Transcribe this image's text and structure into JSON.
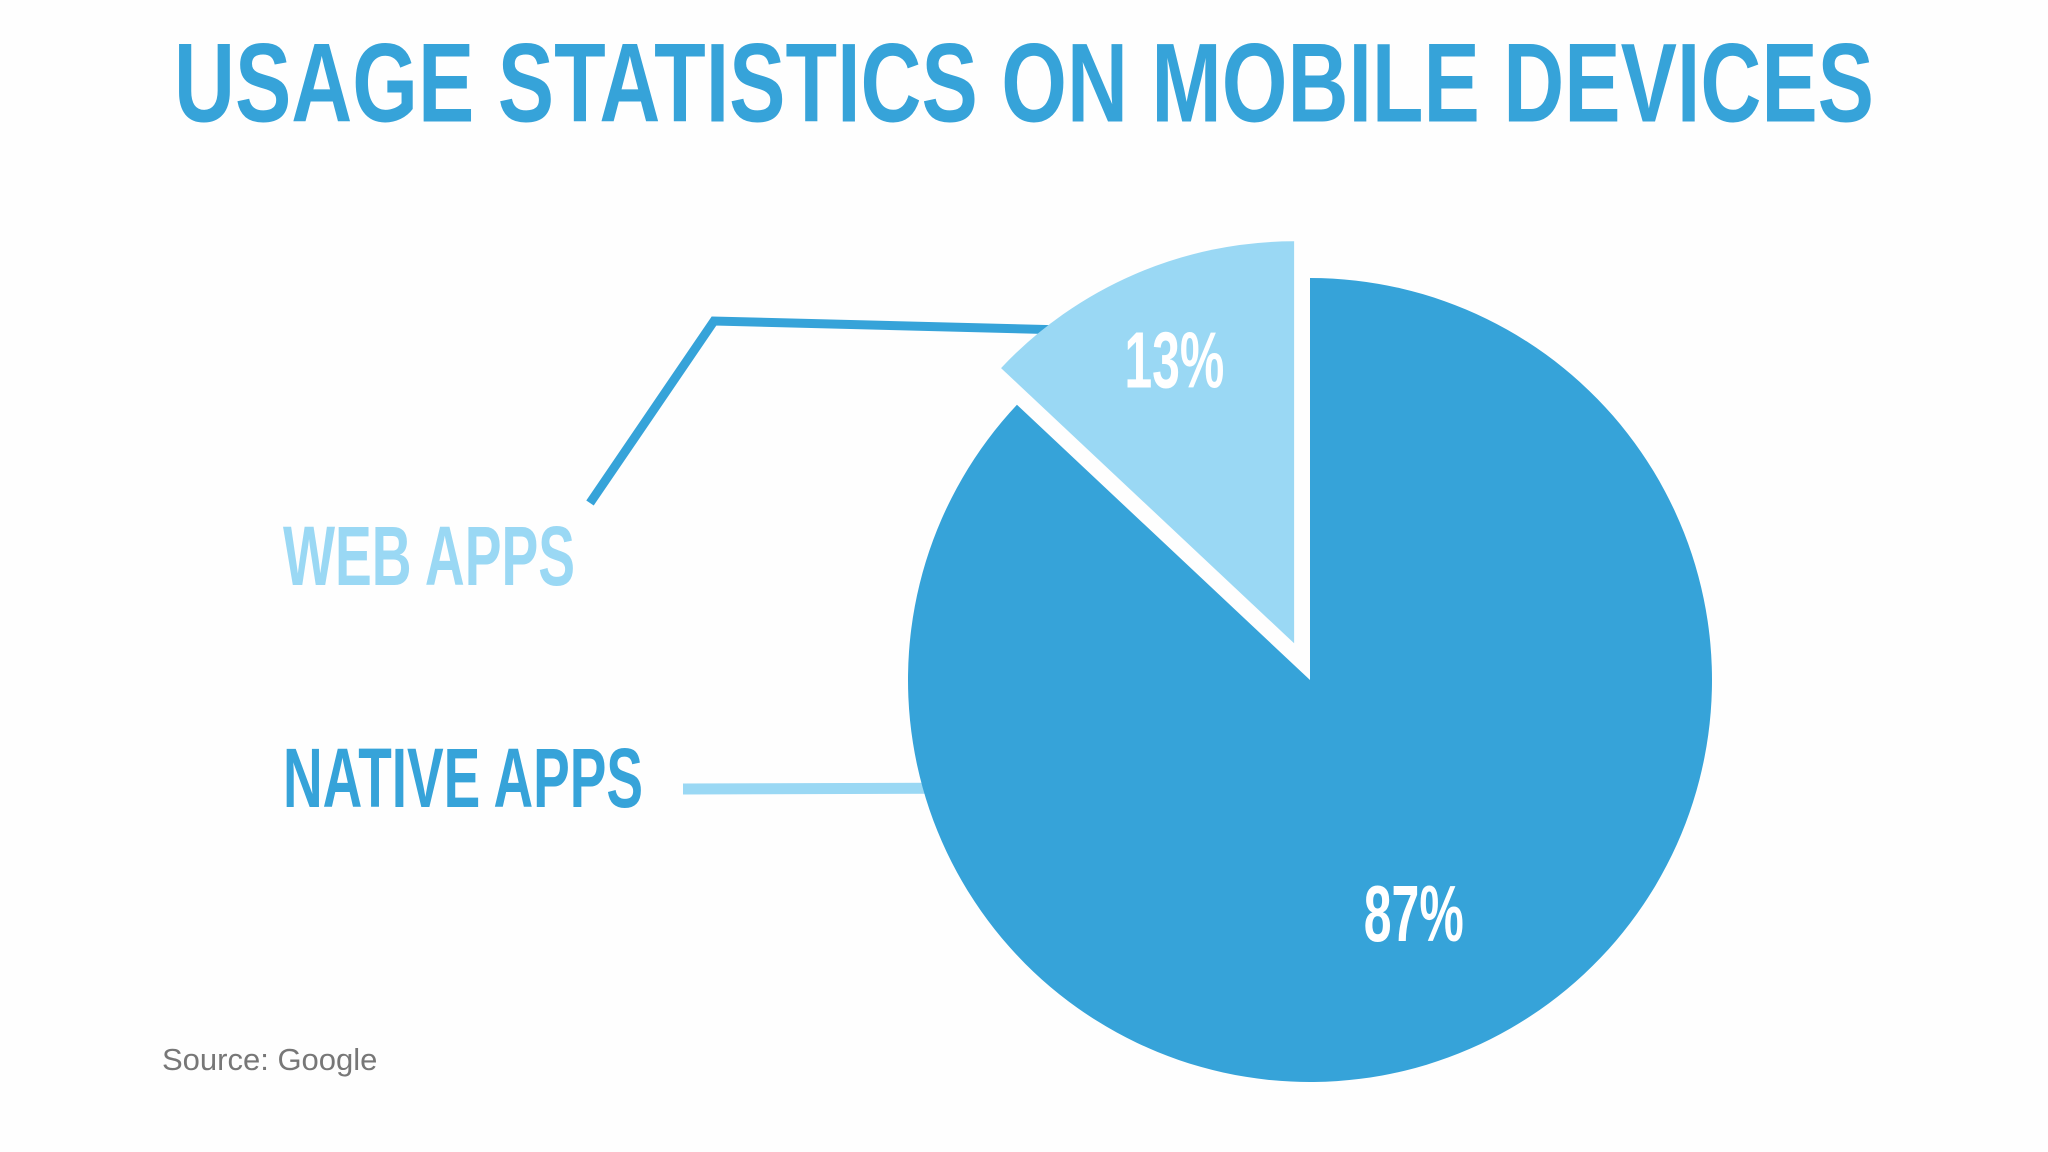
{
  "chart_data": {
    "type": "pie",
    "title": "USAGE STATISTICS ON MOBILE DEVICES",
    "categories": [
      "WEB APPS",
      "NATIVE APPS"
    ],
    "values": [
      13,
      87
    ],
    "value_labels": [
      "13%",
      "87%"
    ],
    "colors": [
      "#9ad8f4",
      "#36a3d9"
    ],
    "source": "Source: Google"
  }
}
